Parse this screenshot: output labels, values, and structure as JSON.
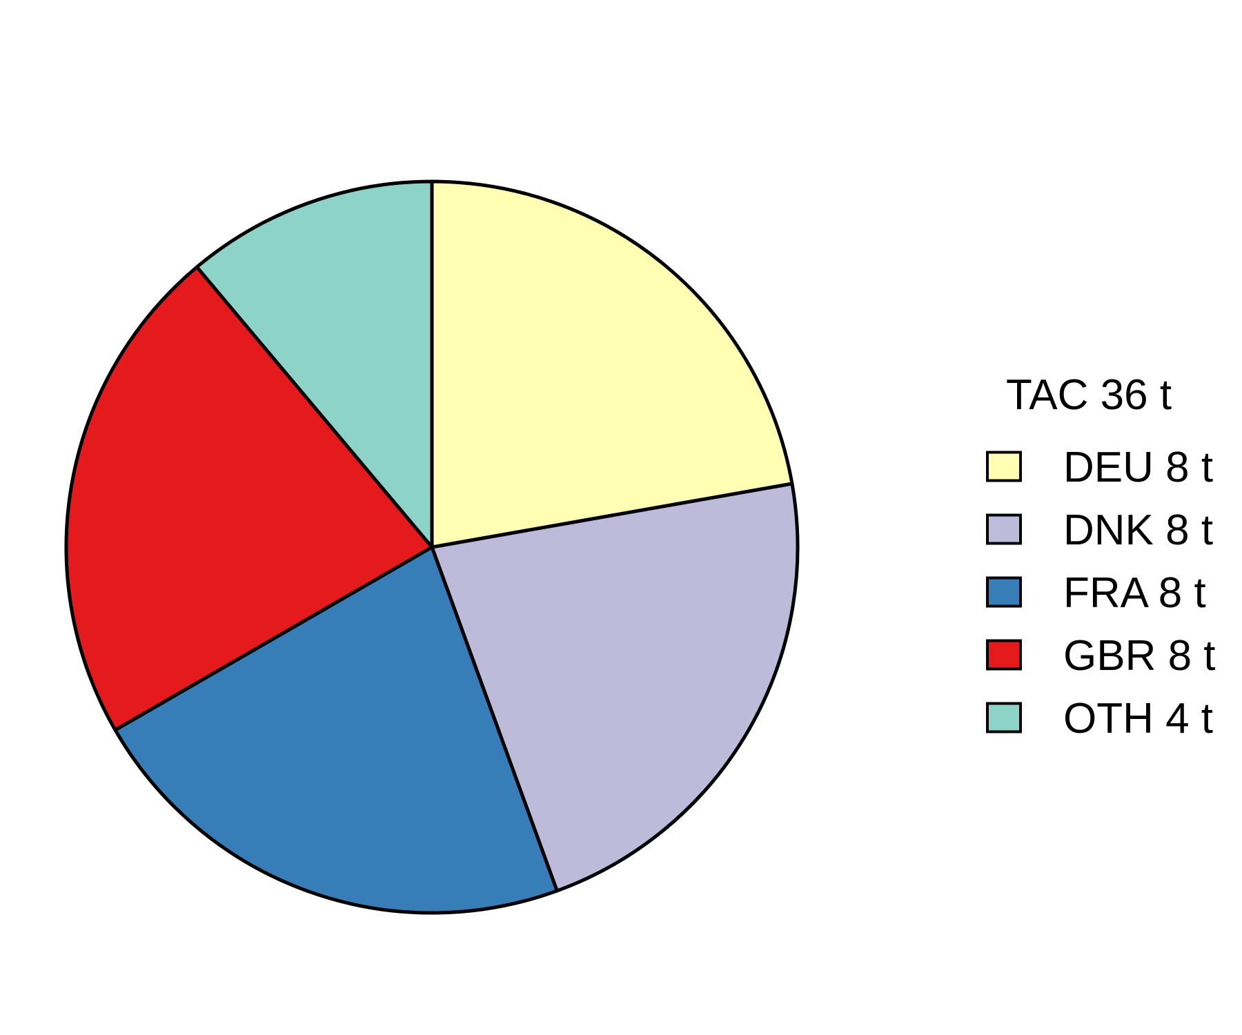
{
  "chart_data": {
    "type": "pie",
    "start_angle": "12 o'clock, clockwise",
    "legend_title": "TAC 36 t",
    "legend_position": "right",
    "slices": [
      {
        "label": "DEU 8 t",
        "value": 8,
        "color": "#FFFFB3"
      },
      {
        "label": "DNK 8 t",
        "value": 8,
        "color": "#BEBADA"
      },
      {
        "label": "FRA 8 t",
        "value": 8,
        "color": "#377EB8"
      },
      {
        "label": "GBR 8 t",
        "value": 8,
        "color": "#E41A1C"
      },
      {
        "label": "OTH 4 t",
        "value": 4,
        "color": "#8DD3C7"
      }
    ]
  }
}
